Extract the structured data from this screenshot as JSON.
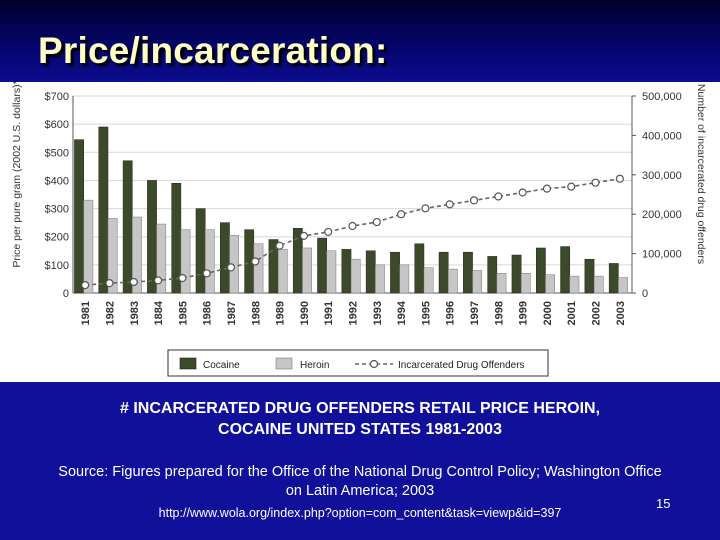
{
  "slide": {
    "title": "Price/incarceration:",
    "caption_line1": "# INCARCERATED DRUG OFFENDERS RETAIL PRICE HEROIN,",
    "caption_line2": "COCAINE UNITED STATES 1981-2003",
    "source_line1": "Source: Figures prepared for the Office of the National Drug Control Policy; Washington Office",
    "source_line2": "on Latin America; 2003",
    "url": "http://www.wola.org/index.php?option=com_content&task=viewp&id=397",
    "page_number": "15"
  },
  "chart_data": {
    "type": "bar",
    "categories": [
      "1981",
      "1982",
      "1983",
      "1884",
      "1985",
      "1986",
      "1987",
      "1988",
      "1989",
      "1990",
      "1991",
      "1992",
      "1993",
      "1994",
      "1995",
      "1996",
      "1997",
      "1998",
      "1999",
      "2000",
      "2001",
      "2002",
      "2003"
    ],
    "series": [
      {
        "name": "Cocaine",
        "type": "bar",
        "axis": "left",
        "color": "#3b4a28",
        "values": [
          545,
          590,
          470,
          400,
          390,
          300,
          250,
          225,
          190,
          230,
          195,
          155,
          150,
          145,
          175,
          145,
          145,
          130,
          135,
          160,
          165,
          120,
          105
        ]
      },
      {
        "name": "Heroin",
        "type": "bar",
        "axis": "left",
        "color": "#c6c6c6",
        "values": [
          330,
          265,
          270,
          245,
          225,
          225,
          205,
          175,
          155,
          160,
          150,
          120,
          100,
          100,
          90,
          85,
          80,
          70,
          70,
          65,
          60,
          60,
          55
        ]
      },
      {
        "name": "Incarcerated Drug Offenders",
        "type": "line",
        "axis": "right",
        "color": "#666666",
        "values": [
          20000,
          25000,
          28000,
          32000,
          38000,
          50000,
          65000,
          80000,
          120000,
          145000,
          155000,
          170000,
          180000,
          200000,
          215000,
          225000,
          235000,
          245000,
          255000,
          265000,
          270000,
          280000,
          290000
        ]
      }
    ],
    "ylabel_left": "Price per pure gram (2002 U.S. dollars)*",
    "ylabel_right": "Number of incarcerated drug offenders",
    "ylim_left": [
      0,
      700
    ],
    "ylim_right": [
      0,
      500000
    ],
    "yticks_left": [
      "0",
      "$100",
      "$200",
      "$300",
      "$400",
      "$500",
      "$600",
      "$700"
    ],
    "yticks_right": [
      "0",
      "100,000",
      "200,000",
      "300,000",
      "400,000",
      "500,000"
    ],
    "legend": [
      "Cocaine",
      "Heroin",
      "Incarcerated Drug Offenders"
    ],
    "legend_position": "bottom",
    "grid": "horizontal"
  }
}
